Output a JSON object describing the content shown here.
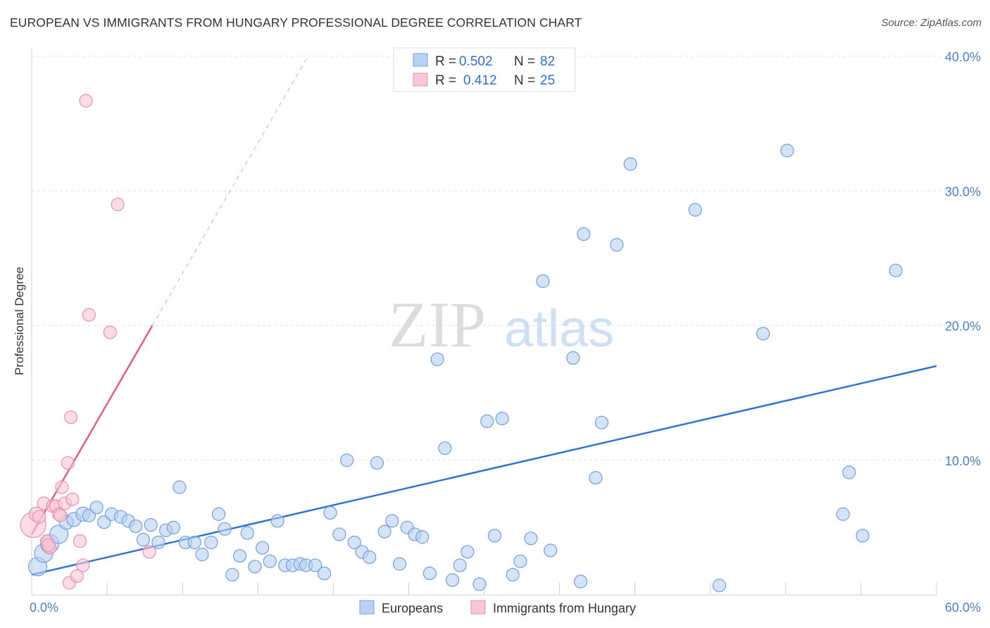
{
  "title": "EUROPEAN VS IMMIGRANTS FROM HUNGARY PROFESSIONAL DEGREE CORRELATION CHART",
  "source": "Source: ZipAtlas.com",
  "watermark": {
    "zip": "ZIP",
    "atlas": "atlas"
  },
  "colors": {
    "blue_fill": "#b9d1f2",
    "blue_stroke": "#6f9fe0",
    "blue_line": "#2f74d0",
    "pink_fill": "#f8c6d4",
    "pink_stroke": "#ec8fab",
    "pink_line": "#e45c8a",
    "value_text": "#2f6fcb"
  },
  "legend": {
    "rows": [
      {
        "r_label": "R =",
        "r_value": "0.502",
        "n_label": "N =",
        "n_value": "82"
      },
      {
        "r_label": "R =",
        "r_value": "0.412",
        "n_label": "N =",
        "n_value": "25"
      }
    ]
  },
  "chart_data": {
    "type": "scatter",
    "title": "EUROPEAN VS IMMIGRANTS FROM HUNGARY PROFESSIONAL DEGREE CORRELATION CHART",
    "xlabel": "",
    "ylabel": "Professional Degree",
    "xlim": [
      0,
      60
    ],
    "ylim": [
      0,
      40
    ],
    "x_tick_labels": [
      "0.0%",
      "60.0%"
    ],
    "y_ticks": [
      10,
      20,
      30,
      40
    ],
    "y_tick_labels": [
      "10.0%",
      "20.0%",
      "30.0%",
      "40.0%"
    ],
    "grid": true,
    "legend_position": "top-center",
    "series": [
      {
        "name": "Europeans",
        "r": 0.502,
        "n": 82,
        "trend": {
          "x0": 0,
          "y0": 1.5,
          "x1": 60,
          "y1": 17.0
        },
        "points": [
          [
            0.4,
            2.1,
            13
          ],
          [
            0.8,
            3.1,
            13
          ],
          [
            1.2,
            3.8,
            13
          ],
          [
            1.8,
            4.5,
            13
          ],
          [
            2.3,
            5.4,
            10
          ],
          [
            2.8,
            5.6,
            10
          ],
          [
            3.4,
            6.0,
            10
          ],
          [
            3.8,
            5.9,
            9
          ],
          [
            4.3,
            6.5,
            9
          ],
          [
            4.8,
            5.4,
            9
          ],
          [
            5.3,
            6.0,
            9
          ],
          [
            5.9,
            5.8,
            9
          ],
          [
            6.4,
            5.5,
            9
          ],
          [
            6.9,
            5.1,
            9
          ],
          [
            7.4,
            4.1,
            9
          ],
          [
            7.9,
            5.2,
            9
          ],
          [
            8.4,
            3.9,
            9
          ],
          [
            8.9,
            4.8,
            9
          ],
          [
            9.4,
            5.0,
            9
          ],
          [
            9.8,
            8.0,
            9
          ],
          [
            10.2,
            3.9,
            9
          ],
          [
            10.8,
            3.9,
            9
          ],
          [
            11.3,
            3.0,
            9
          ],
          [
            11.9,
            3.9,
            9
          ],
          [
            12.4,
            6.0,
            9
          ],
          [
            12.8,
            4.9,
            9
          ],
          [
            13.3,
            1.5,
            9
          ],
          [
            13.8,
            2.9,
            9
          ],
          [
            14.3,
            4.6,
            9
          ],
          [
            14.8,
            2.1,
            9
          ],
          [
            15.3,
            3.5,
            9
          ],
          [
            15.8,
            2.5,
            9
          ],
          [
            16.3,
            5.5,
            9
          ],
          [
            16.8,
            2.2,
            9
          ],
          [
            17.3,
            2.2,
            9
          ],
          [
            17.8,
            2.3,
            9
          ],
          [
            18.2,
            2.2,
            9
          ],
          [
            18.8,
            2.2,
            9
          ],
          [
            19.4,
            1.6,
            9
          ],
          [
            19.8,
            6.1,
            9
          ],
          [
            20.4,
            4.5,
            9
          ],
          [
            20.9,
            10.0,
            9
          ],
          [
            21.4,
            3.9,
            9
          ],
          [
            21.9,
            3.2,
            9
          ],
          [
            22.4,
            2.8,
            9
          ],
          [
            22.9,
            9.8,
            9
          ],
          [
            23.4,
            4.7,
            9
          ],
          [
            23.9,
            5.5,
            9
          ],
          [
            24.4,
            2.3,
            9
          ],
          [
            24.9,
            5.0,
            9
          ],
          [
            25.4,
            4.5,
            9
          ],
          [
            25.9,
            4.3,
            9
          ],
          [
            26.4,
            1.6,
            9
          ],
          [
            26.9,
            17.5,
            9
          ],
          [
            27.4,
            10.9,
            9
          ],
          [
            27.9,
            1.1,
            9
          ],
          [
            28.4,
            2.2,
            9
          ],
          [
            28.9,
            3.2,
            9
          ],
          [
            29.7,
            0.8,
            9
          ],
          [
            30.2,
            12.9,
            9
          ],
          [
            30.7,
            4.4,
            9
          ],
          [
            31.2,
            13.1,
            9
          ],
          [
            31.9,
            1.5,
            9
          ],
          [
            32.4,
            2.5,
            9
          ],
          [
            33.1,
            4.2,
            9
          ],
          [
            33.9,
            23.3,
            9
          ],
          [
            34.4,
            3.3,
            9
          ],
          [
            35.9,
            17.6,
            9
          ],
          [
            36.4,
            1.0,
            9
          ],
          [
            36.6,
            26.8,
            9
          ],
          [
            37.4,
            8.7,
            9
          ],
          [
            37.8,
            12.8,
            9
          ],
          [
            38.8,
            26.0,
            9
          ],
          [
            39.7,
            32.0,
            9
          ],
          [
            44.0,
            28.6,
            9
          ],
          [
            45.6,
            0.7,
            9
          ],
          [
            48.5,
            19.4,
            9
          ],
          [
            50.1,
            33.0,
            9
          ],
          [
            53.8,
            6.0,
            9
          ],
          [
            54.2,
            9.1,
            9
          ],
          [
            55.1,
            4.4,
            9
          ],
          [
            57.3,
            24.1,
            9
          ]
        ]
      },
      {
        "name": "Immigrants from Hungary",
        "r": 0.412,
        "n": 25,
        "trend": {
          "x0": 0,
          "y0": 4.5,
          "x1": 8.0,
          "y1": 20.0,
          "dash_to_x": 18.3
        },
        "points": [
          [
            0.1,
            5.2,
            18
          ],
          [
            0.3,
            6.0,
            10
          ],
          [
            0.5,
            5.8,
            9
          ],
          [
            0.8,
            6.8,
            9
          ],
          [
            1.0,
            4.0,
            9
          ],
          [
            1.2,
            3.5,
            9
          ],
          [
            1.4,
            6.6,
            9
          ],
          [
            1.6,
            6.6,
            9
          ],
          [
            1.8,
            6.0,
            9
          ],
          [
            1.9,
            5.9,
            9
          ],
          [
            2.0,
            8.0,
            9
          ],
          [
            2.2,
            6.8,
            9
          ],
          [
            2.4,
            9.8,
            9
          ],
          [
            2.5,
            0.9,
            9
          ],
          [
            2.6,
            13.2,
            9
          ],
          [
            2.7,
            7.1,
            9
          ],
          [
            3.0,
            1.4,
            9
          ],
          [
            3.2,
            4.0,
            9
          ],
          [
            3.4,
            2.2,
            9
          ],
          [
            3.6,
            36.7,
            9
          ],
          [
            3.8,
            20.8,
            9
          ],
          [
            5.2,
            19.5,
            9
          ],
          [
            5.7,
            29.0,
            9
          ],
          [
            7.8,
            3.2,
            9
          ],
          [
            1.1,
            3.7,
            9
          ]
        ]
      }
    ]
  },
  "bottom_legend": {
    "items": [
      "Europeans",
      "Immigrants from Hungary"
    ]
  }
}
